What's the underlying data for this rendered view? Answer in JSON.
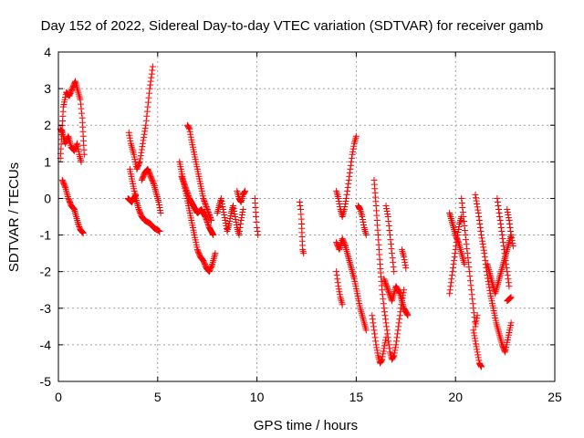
{
  "chart_data": {
    "type": "scatter",
    "title": "Day 152 of 2022, Sidereal Day-to-day VTEC variation (SDTVAR) for receiver gamb",
    "xlabel": "GPS time / hours",
    "ylabel": "SDTVAR / TECUs",
    "xlim": [
      0,
      25
    ],
    "ylim": [
      -5,
      4
    ],
    "xticks": [
      0,
      5,
      10,
      15,
      20,
      25
    ],
    "yticks": [
      -5,
      -4,
      -3,
      -2,
      -1,
      0,
      1,
      2,
      3,
      4
    ],
    "grid": true,
    "marker": "+",
    "color": "#ff0000",
    "series": [
      {
        "name": "SDTVAR",
        "segments": [
          {
            "x": [
              0.1,
              0.25,
              0.4,
              0.55,
              0.7,
              0.85,
              1.0,
              1.1,
              1.2,
              1.3
            ],
            "y": [
              1.1,
              2.5,
              2.9,
              2.8,
              3.0,
              3.2,
              2.9,
              2.7,
              2.2,
              1.2
            ]
          },
          {
            "x": [
              0.1,
              0.2,
              0.35,
              0.5,
              0.65,
              0.8,
              0.95,
              1.05,
              1.15
            ],
            "y": [
              1.9,
              1.8,
              1.5,
              1.7,
              1.4,
              1.3,
              1.5,
              1.2,
              1.0
            ]
          },
          {
            "x": [
              0.2,
              0.35,
              0.5,
              0.65,
              0.8,
              0.9,
              1.0,
              1.1,
              1.25
            ],
            "y": [
              0.5,
              0.3,
              0.0,
              -0.2,
              -0.3,
              -0.5,
              -0.7,
              -0.85,
              -0.95
            ]
          },
          {
            "x": [
              3.55,
              3.65,
              3.8,
              3.95,
              4.1,
              4.25,
              4.4,
              4.5,
              4.6,
              4.7,
              4.75
            ],
            "y": [
              1.8,
              1.5,
              1.2,
              0.8,
              1.0,
              1.5,
              2.0,
              2.5,
              3.0,
              3.4,
              3.6
            ]
          },
          {
            "x": [
              3.6,
              3.75,
              3.9,
              4.05,
              4.2,
              4.35,
              4.5,
              4.65,
              4.8,
              4.95,
              5.1
            ],
            "y": [
              0.8,
              0.4,
              0.0,
              -0.3,
              -0.5,
              -0.6,
              -0.65,
              -0.7,
              -0.8,
              -0.85,
              -0.9
            ]
          },
          {
            "x": [
              4.2,
              4.35,
              4.5,
              4.65,
              4.8,
              4.95,
              5.05,
              5.15
            ],
            "y": [
              0.5,
              0.7,
              0.8,
              0.6,
              0.4,
              0.1,
              -0.1,
              -0.4
            ]
          },
          {
            "x": [
              3.5,
              3.7,
              3.9
            ],
            "y": [
              0.0,
              -0.1,
              0.1
            ]
          },
          {
            "x": [
              6.1,
              6.25,
              6.4,
              6.55,
              6.7,
              6.85,
              7.0,
              7.15,
              7.3,
              7.45,
              7.6,
              7.75,
              7.9
            ],
            "y": [
              1.0,
              0.6,
              0.2,
              -0.2,
              -0.6,
              -1.0,
              -1.4,
              -1.6,
              -1.7,
              -1.9,
              -2.0,
              -1.8,
              -1.5
            ]
          },
          {
            "x": [
              6.5,
              6.6,
              6.7,
              6.85,
              7.0,
              7.15,
              7.3,
              7.5,
              7.7
            ],
            "y": [
              2.0,
              1.9,
              1.6,
              1.2,
              0.8,
              0.4,
              0.0,
              -0.3,
              -0.6
            ]
          },
          {
            "x": [
              6.2,
              6.4,
              6.6,
              6.8,
              7.0,
              7.2,
              7.4,
              7.6,
              7.8
            ],
            "y": [
              0.6,
              0.3,
              0.0,
              -0.2,
              -0.4,
              -0.3,
              -0.5,
              -0.8,
              -1.0
            ]
          },
          {
            "x": [
              8.0,
              8.1,
              8.2,
              8.3,
              8.4,
              8.5,
              8.6,
              8.7,
              8.8,
              8.9,
              9.0,
              9.1,
              9.2,
              9.3
            ],
            "y": [
              -0.4,
              -0.2,
              0.0,
              -0.3,
              -0.6,
              -0.9,
              -0.7,
              -0.4,
              -0.2,
              -0.5,
              -0.8,
              -1.0,
              -0.6,
              -0.3
            ]
          },
          {
            "x": [
              9.0,
              9.1,
              9.2,
              9.3,
              9.4
            ],
            "y": [
              0.2,
              0.0,
              -0.1,
              0.1,
              0.2
            ]
          },
          {
            "x": [
              9.9,
              9.95,
              10.0,
              10.05
            ],
            "y": [
              0.0,
              -0.5,
              -0.8,
              -1.0
            ]
          },
          {
            "x": [
              12.15,
              12.2,
              12.25,
              12.3,
              12.35
            ],
            "y": [
              -0.1,
              -0.3,
              -0.7,
              -1.4,
              -1.5
            ]
          },
          {
            "x": [
              14.0,
              14.1,
              14.2,
              14.3,
              14.4,
              14.5,
              14.6,
              14.7,
              14.8,
              14.9,
              15.0
            ],
            "y": [
              0.2,
              0.0,
              -0.3,
              -0.5,
              -0.3,
              0.0,
              0.4,
              0.8,
              1.2,
              1.5,
              1.7
            ]
          },
          {
            "x": [
              14.0,
              14.15,
              14.3,
              14.45,
              14.6,
              14.75,
              14.9,
              15.05,
              15.2,
              15.35,
              15.5
            ],
            "y": [
              -1.2,
              -1.4,
              -1.1,
              -1.3,
              -1.6,
              -1.9,
              -2.2,
              -2.6,
              -3.0,
              -3.3,
              -3.6
            ]
          },
          {
            "x": [
              14.0,
              14.1,
              14.2,
              14.3
            ],
            "y": [
              -2.0,
              -2.4,
              -2.7,
              -2.9
            ]
          },
          {
            "x": [
              15.1,
              15.2,
              15.3,
              15.4,
              15.5
            ],
            "y": [
              -0.2,
              -0.3,
              -0.5,
              -0.8,
              -1.0
            ]
          },
          {
            "x": [
              15.9,
              16.0,
              16.1,
              16.2,
              16.3,
              16.4,
              16.5,
              16.6,
              16.7,
              16.8,
              16.9,
              17.0,
              17.1,
              17.2,
              17.3,
              17.4
            ],
            "y": [
              0.5,
              -0.2,
              -1.0,
              -1.8,
              -2.5,
              -3.0,
              -3.4,
              -3.8,
              -4.2,
              -4.4,
              -4.3,
              -4.0,
              -3.6,
              -3.2,
              -2.8,
              -2.5
            ]
          },
          {
            "x": [
              15.8,
              15.9,
              16.0,
              16.1,
              16.2,
              16.3,
              16.4,
              16.5
            ],
            "y": [
              -3.2,
              -3.6,
              -4.0,
              -4.3,
              -4.5,
              -4.4,
              -4.1,
              -3.8
            ]
          },
          {
            "x": [
              16.4,
              16.6,
              16.8,
              17.0,
              17.2,
              17.4,
              17.6
            ],
            "y": [
              -2.2,
              -2.5,
              -2.8,
              -2.4,
              -2.6,
              -3.0,
              -3.2
            ]
          },
          {
            "x": [
              16.5,
              16.6,
              16.7,
              16.8,
              16.9
            ],
            "y": [
              -0.2,
              -0.5,
              -1.0,
              -1.5,
              -2.0
            ]
          },
          {
            "x": [
              17.3,
              17.4,
              17.5
            ],
            "y": [
              -1.4,
              -1.6,
              -1.9
            ]
          },
          {
            "x": [
              19.7,
              19.8,
              19.9,
              20.0,
              20.1,
              20.2,
              20.3
            ],
            "y": [
              -2.6,
              -2.2,
              -1.8,
              -1.4,
              -1.0,
              -0.7,
              -0.5
            ]
          },
          {
            "x": [
              19.7,
              19.85,
              20.0,
              20.15,
              20.3,
              20.45
            ],
            "y": [
              -0.4,
              -0.7,
              -1.0,
              -1.2,
              -1.5,
              -1.8
            ]
          },
          {
            "x": [
              20.3,
              20.4,
              20.5,
              20.6,
              20.7,
              20.8,
              20.9,
              21.0,
              21.1
            ],
            "y": [
              0.0,
              -0.5,
              -1.0,
              -1.5,
              -2.0,
              -2.5,
              -3.0,
              -3.5,
              -3.2
            ]
          },
          {
            "x": [
              20.9,
              21.0,
              21.1,
              21.2,
              21.3
            ],
            "y": [
              -3.6,
              -3.9,
              -4.2,
              -4.5,
              -4.6
            ]
          },
          {
            "x": [
              21.0,
              21.15,
              21.3,
              21.45,
              21.6,
              21.75,
              21.9,
              22.05,
              22.2,
              22.35,
              22.5,
              22.65,
              22.8
            ],
            "y": [
              0.1,
              -0.4,
              -1.0,
              -1.5,
              -2.1,
              -2.6,
              -3.0,
              -3.4,
              -3.7,
              -4.0,
              -4.2,
              -3.8,
              -3.4
            ]
          },
          {
            "x": [
              21.6,
              21.8,
              22.0,
              22.2,
              22.4,
              22.6,
              22.8
            ],
            "y": [
              -1.8,
              -2.2,
              -2.6,
              -2.2,
              -1.8,
              -1.4,
              -1.0
            ]
          },
          {
            "x": [
              22.1,
              22.2,
              22.3,
              22.4,
              22.5,
              22.6,
              22.7
            ],
            "y": [
              0.0,
              -0.4,
              -0.8,
              -1.2,
              -1.6,
              -2.0,
              -2.4
            ]
          },
          {
            "x": [
              22.6,
              22.7,
              22.8,
              22.9
            ],
            "y": [
              -0.3,
              -0.6,
              -1.0,
              -1.3
            ]
          },
          {
            "x": [
              22.6,
              22.7,
              22.8
            ],
            "y": [
              -2.8,
              -2.75,
              -2.7
            ]
          }
        ]
      }
    ]
  }
}
